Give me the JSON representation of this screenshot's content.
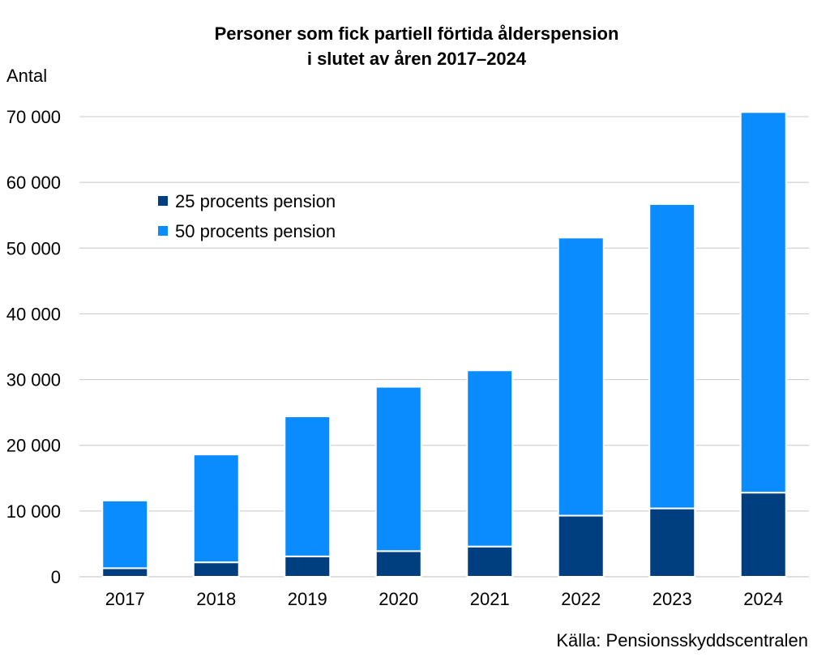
{
  "chart_data": {
    "type": "bar",
    "stacked": true,
    "title_lines": [
      "Personer som fick partiell förtida ålderspension",
      "i slutet av åren 2017–2024"
    ],
    "ylabel": "Antal",
    "xlabel": "",
    "categories": [
      "2017",
      "2018",
      "2019",
      "2020",
      "2021",
      "2022",
      "2023",
      "2024"
    ],
    "series": [
      {
        "name": "25 procents pension",
        "color": "#003f7f",
        "values": [
          1300,
          2200,
          3100,
          3900,
          4600,
          9300,
          10400,
          12800
        ]
      },
      {
        "name": "50 procents pension",
        "color": "#0a8cff",
        "values": [
          10300,
          16400,
          21300,
          25000,
          26800,
          42300,
          46300,
          57900
        ]
      }
    ],
    "ylim": [
      0,
      70000
    ],
    "yticks": [
      0,
      10000,
      20000,
      30000,
      40000,
      50000,
      60000,
      70000
    ],
    "ytick_labels": [
      "0",
      "10 000",
      "20 000",
      "30 000",
      "40 000",
      "50 000",
      "60 000",
      "70 000"
    ],
    "grid": true,
    "legend_position": "top-left"
  },
  "source": "Källa: Pensionsskyddscentralen"
}
